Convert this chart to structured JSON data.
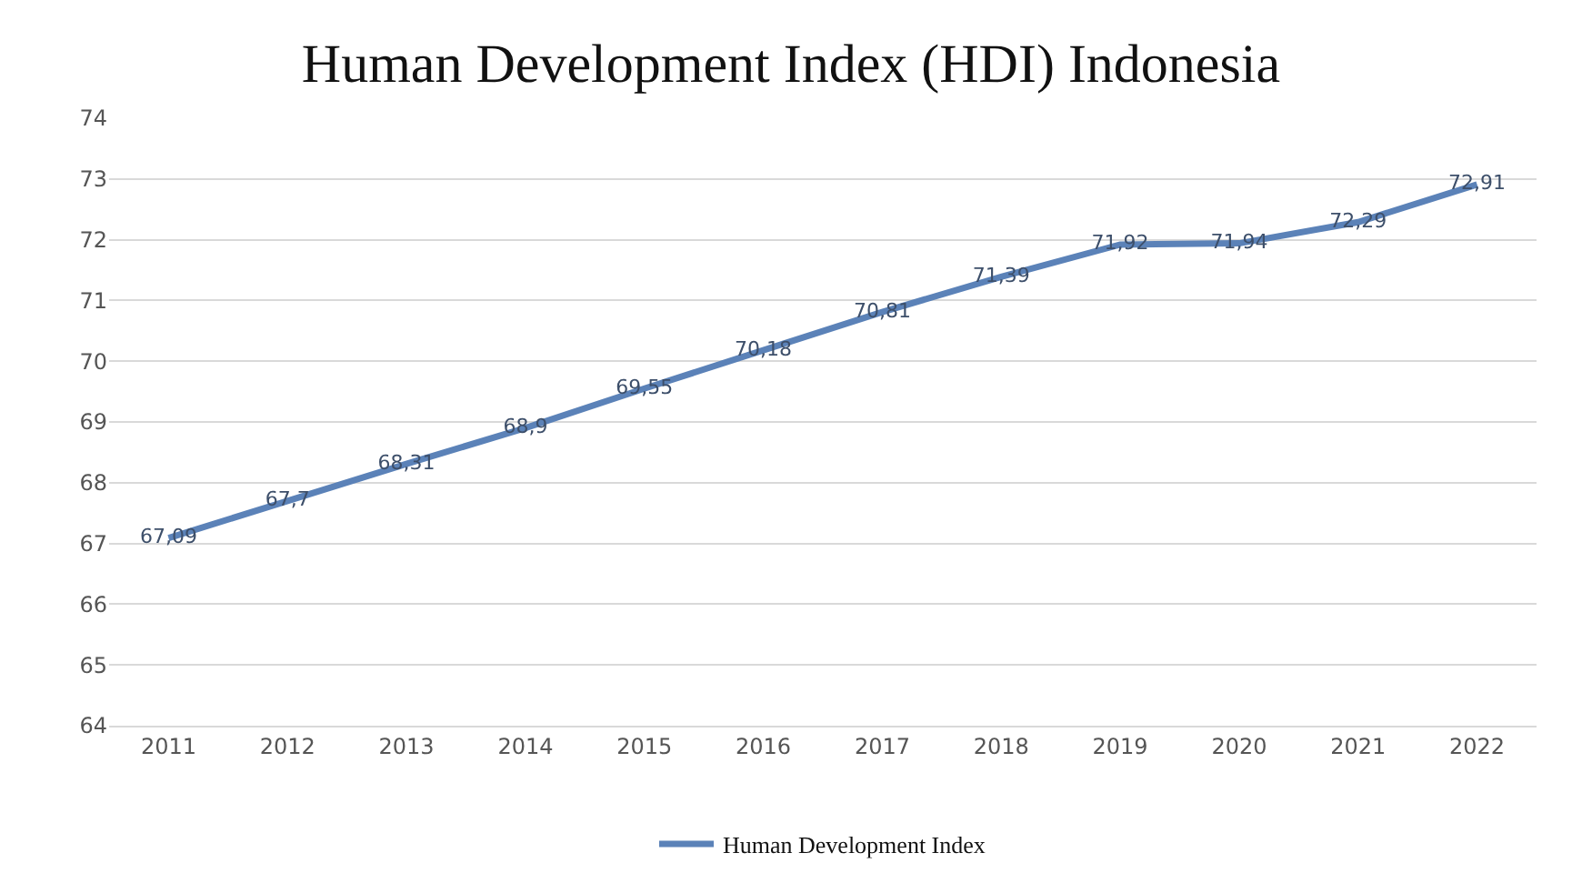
{
  "chart_data": {
    "type": "line",
    "title": "Human Development Index (HDI) Indonesia",
    "categories": [
      "2011",
      "2012",
      "2013",
      "2014",
      "2015",
      "2016",
      "2017",
      "2018",
      "2019",
      "2020",
      "2021",
      "2022"
    ],
    "series": [
      {
        "name": "Human Development Index",
        "color": "#5b82b8",
        "values": [
          67.09,
          67.7,
          68.31,
          68.9,
          69.55,
          70.18,
          70.81,
          71.39,
          71.92,
          71.94,
          72.29,
          72.91
        ],
        "value_labels": [
          "67,09",
          "67,7",
          "68,31",
          "68,9",
          "69,55",
          "70,18",
          "70,81",
          "71,39",
          "71,92",
          "71,94",
          "72,29",
          "72,91"
        ]
      }
    ],
    "ylim": [
      64,
      74
    ],
    "yticks": [
      64,
      65,
      66,
      67,
      68,
      69,
      70,
      71,
      72,
      73,
      74
    ],
    "grid": "y",
    "legend": "bottom",
    "marker": "none",
    "line_style": "solid"
  }
}
